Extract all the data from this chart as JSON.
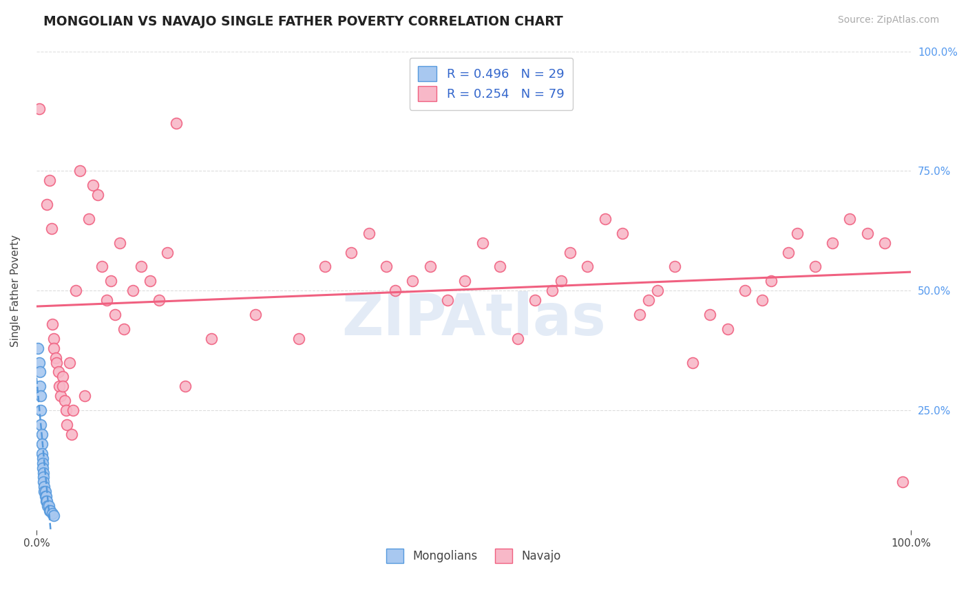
{
  "title": "MONGOLIAN VS NAVAJO SINGLE FATHER POVERTY CORRELATION CHART",
  "source_text": "Source: ZipAtlas.com",
  "ylabel": "Single Father Poverty",
  "xlim": [
    0.0,
    1.0
  ],
  "ylim": [
    0.0,
    1.0
  ],
  "mongolian_R": 0.496,
  "mongolian_N": 29,
  "navajo_R": 0.254,
  "navajo_N": 79,
  "mongolian_color": "#a8c8f0",
  "navajo_color": "#f8b8c8",
  "mongolian_edge_color": "#5599dd",
  "navajo_edge_color": "#f06080",
  "mongolian_line_color": "#5599dd",
  "navajo_line_color": "#f06080",
  "watermark": "ZIPAtlas",
  "background_color": "#ffffff",
  "grid_color": "#dddddd",
  "right_tick_color": "#5599ee",
  "mongolian_scatter": [
    [
      0.002,
      0.38
    ],
    [
      0.003,
      0.35
    ],
    [
      0.004,
      0.33
    ],
    [
      0.004,
      0.3
    ],
    [
      0.005,
      0.28
    ],
    [
      0.005,
      0.25
    ],
    [
      0.005,
      0.22
    ],
    [
      0.006,
      0.2
    ],
    [
      0.006,
      0.18
    ],
    [
      0.006,
      0.16
    ],
    [
      0.007,
      0.15
    ],
    [
      0.007,
      0.14
    ],
    [
      0.007,
      0.13
    ],
    [
      0.008,
      0.12
    ],
    [
      0.008,
      0.11
    ],
    [
      0.008,
      0.1
    ],
    [
      0.009,
      0.09
    ],
    [
      0.009,
      0.08
    ],
    [
      0.01,
      0.08
    ],
    [
      0.01,
      0.07
    ],
    [
      0.011,
      0.07
    ],
    [
      0.011,
      0.06
    ],
    [
      0.012,
      0.06
    ],
    [
      0.013,
      0.05
    ],
    [
      0.014,
      0.05
    ],
    [
      0.015,
      0.04
    ],
    [
      0.016,
      0.04
    ],
    [
      0.018,
      0.035
    ],
    [
      0.02,
      0.03
    ]
  ],
  "navajo_scatter": [
    [
      0.003,
      0.88
    ],
    [
      0.012,
      0.68
    ],
    [
      0.015,
      0.73
    ],
    [
      0.017,
      0.63
    ],
    [
      0.018,
      0.43
    ],
    [
      0.02,
      0.4
    ],
    [
      0.02,
      0.38
    ],
    [
      0.022,
      0.36
    ],
    [
      0.023,
      0.35
    ],
    [
      0.025,
      0.33
    ],
    [
      0.026,
      0.3
    ],
    [
      0.028,
      0.28
    ],
    [
      0.03,
      0.32
    ],
    [
      0.03,
      0.3
    ],
    [
      0.032,
      0.27
    ],
    [
      0.034,
      0.25
    ],
    [
      0.035,
      0.22
    ],
    [
      0.038,
      0.35
    ],
    [
      0.04,
      0.2
    ],
    [
      0.042,
      0.25
    ],
    [
      0.045,
      0.5
    ],
    [
      0.05,
      0.75
    ],
    [
      0.055,
      0.28
    ],
    [
      0.06,
      0.65
    ],
    [
      0.065,
      0.72
    ],
    [
      0.07,
      0.7
    ],
    [
      0.075,
      0.55
    ],
    [
      0.08,
      0.48
    ],
    [
      0.085,
      0.52
    ],
    [
      0.09,
      0.45
    ],
    [
      0.095,
      0.6
    ],
    [
      0.1,
      0.42
    ],
    [
      0.11,
      0.5
    ],
    [
      0.12,
      0.55
    ],
    [
      0.13,
      0.52
    ],
    [
      0.14,
      0.48
    ],
    [
      0.15,
      0.58
    ],
    [
      0.16,
      0.85
    ],
    [
      0.17,
      0.3
    ],
    [
      0.2,
      0.4
    ],
    [
      0.25,
      0.45
    ],
    [
      0.3,
      0.4
    ],
    [
      0.33,
      0.55
    ],
    [
      0.36,
      0.58
    ],
    [
      0.38,
      0.62
    ],
    [
      0.4,
      0.55
    ],
    [
      0.41,
      0.5
    ],
    [
      0.43,
      0.52
    ],
    [
      0.45,
      0.55
    ],
    [
      0.47,
      0.48
    ],
    [
      0.49,
      0.52
    ],
    [
      0.51,
      0.6
    ],
    [
      0.53,
      0.55
    ],
    [
      0.55,
      0.4
    ],
    [
      0.57,
      0.48
    ],
    [
      0.59,
      0.5
    ],
    [
      0.6,
      0.52
    ],
    [
      0.61,
      0.58
    ],
    [
      0.63,
      0.55
    ],
    [
      0.65,
      0.65
    ],
    [
      0.67,
      0.62
    ],
    [
      0.69,
      0.45
    ],
    [
      0.7,
      0.48
    ],
    [
      0.71,
      0.5
    ],
    [
      0.73,
      0.55
    ],
    [
      0.75,
      0.35
    ],
    [
      0.77,
      0.45
    ],
    [
      0.79,
      0.42
    ],
    [
      0.81,
      0.5
    ],
    [
      0.83,
      0.48
    ],
    [
      0.84,
      0.52
    ],
    [
      0.86,
      0.58
    ],
    [
      0.87,
      0.62
    ],
    [
      0.89,
      0.55
    ],
    [
      0.91,
      0.6
    ],
    [
      0.93,
      0.65
    ],
    [
      0.95,
      0.62
    ],
    [
      0.97,
      0.6
    ],
    [
      0.99,
      0.1
    ]
  ]
}
